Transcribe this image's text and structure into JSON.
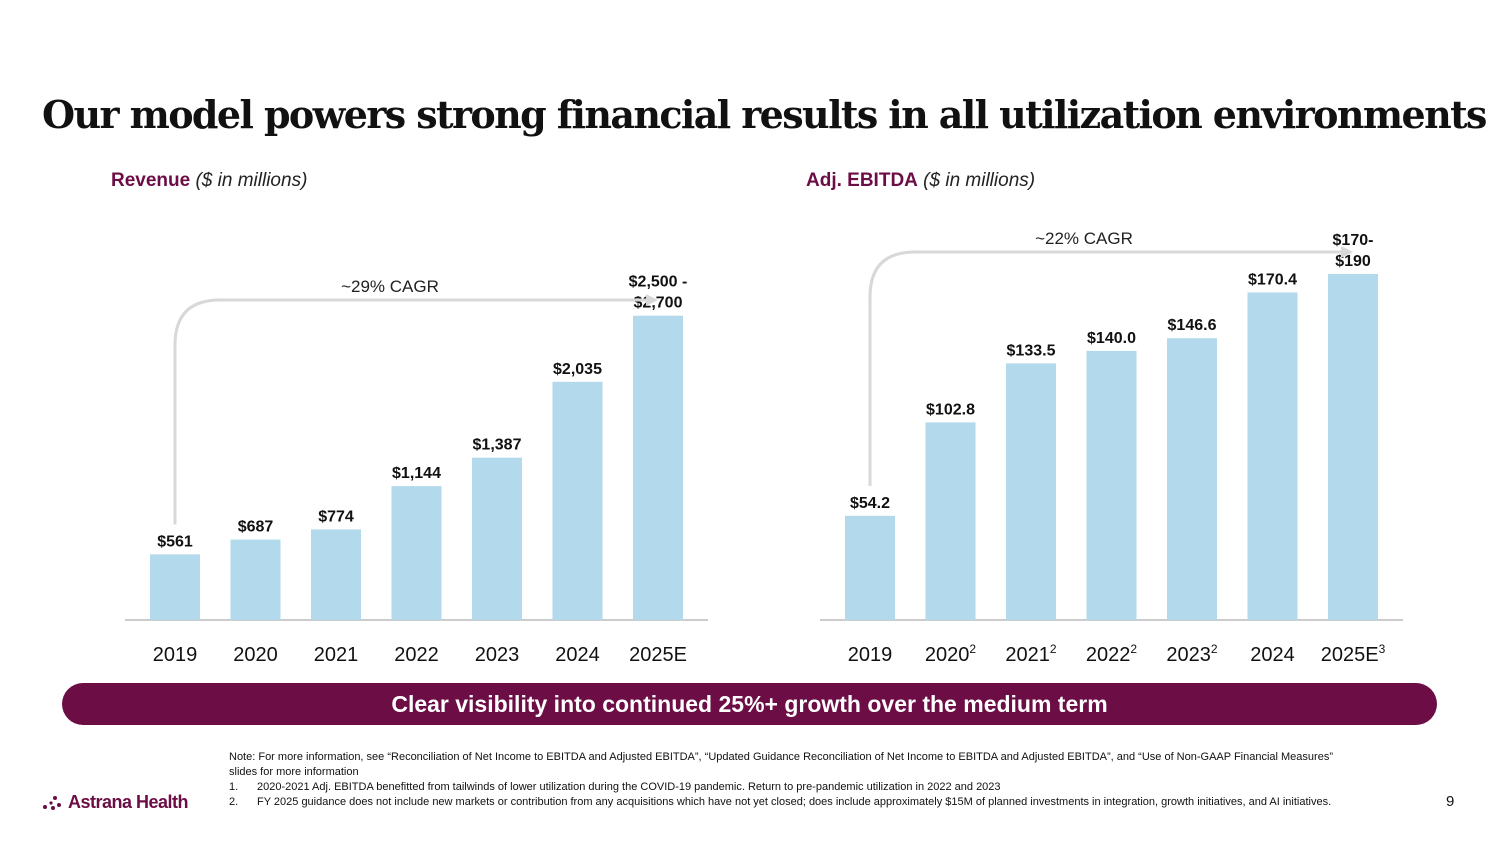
{
  "slide": {
    "title": "Our model powers strong financial results in all utilization environments",
    "banner": "Clear visibility into continued 25%+ growth over the medium term",
    "page_number": "9",
    "logo_text": "Astrana Health"
  },
  "notes": {
    "intro": "Note: For more information, see “Reconciliation of Net Income to EBITDA and Adjusted EBITDA”, “Updated Guidance Reconciliation of Net Income to EBITDA and Adjusted EBITDA”, and “Use of Non-GAAP Financial Measures” slides for more information",
    "items": [
      {
        "num": "1.",
        "text": "2020-2021 Adj. EBITDA benefitted from tailwinds of lower utilization during the COVID-19 pandemic.  Return to pre-pandemic utilization in 2022 and 2023"
      },
      {
        "num": "2.",
        "text": "FY 2025 guidance does not include new markets or contribution from any acquisitions which have not yet closed; does include approximately $15M of planned investments in integration, growth initiatives, and AI initiatives."
      }
    ]
  },
  "chart_data": [
    {
      "type": "bar",
      "title": "Revenue",
      "unit_label": "($ in millions)",
      "annotation": "~29% CAGR",
      "categories": [
        "2019",
        "2020",
        "2021",
        "2022",
        "2023",
        "2024",
        "2025E"
      ],
      "category_superscripts": [
        "",
        "",
        "",
        "",
        "",
        "",
        ""
      ],
      "values": [
        561,
        687,
        774,
        1144,
        1387,
        2035,
        2600
      ],
      "value_labels": [
        [
          "$561"
        ],
        [
          "$687"
        ],
        [
          "$774"
        ],
        [
          "$1,144"
        ],
        [
          "$1,387"
        ],
        [
          "$2,035"
        ],
        [
          "$2,500 -",
          "$2,700"
        ]
      ],
      "ylim": [
        0,
        2700
      ]
    },
    {
      "type": "bar",
      "title": "Adj. EBITDA",
      "unit_label": "($ in millions)",
      "annotation": "~22% CAGR",
      "categories": [
        "2019",
        "2020",
        "2021",
        "2022",
        "2023",
        "2024",
        "2025E"
      ],
      "category_superscripts": [
        "",
        "2",
        "2",
        "2",
        "2",
        "",
        "3"
      ],
      "values": [
        54.2,
        102.8,
        133.5,
        140.0,
        146.6,
        170.4,
        180
      ],
      "value_labels": [
        [
          "$54.2"
        ],
        [
          "$102.8"
        ],
        [
          "$133.5"
        ],
        [
          "$140.0"
        ],
        [
          "$146.6"
        ],
        [
          "$170.4"
        ],
        [
          "$170-",
          "$190"
        ]
      ],
      "ylim": [
        0,
        180
      ]
    }
  ]
}
